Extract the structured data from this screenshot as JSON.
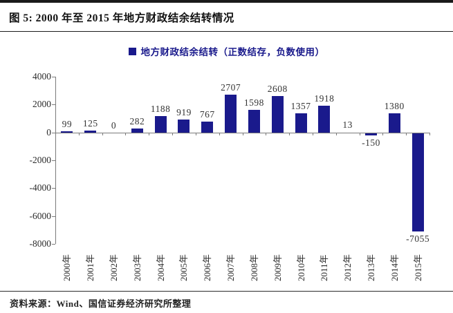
{
  "figure": {
    "title": "图 5: 2000 年至 2015 年地方财政结余结转情况",
    "source": "资料来源：Wind、国信证券经济研究所整理"
  },
  "chart_data": {
    "type": "bar",
    "title": "图 5: 2000 年至 2015 年地方财政结余结转情况",
    "legend_label": "地方财政结余结转（正数结存，负数使用）",
    "legend_position": "top",
    "categories": [
      "2000年",
      "2001年",
      "2002年",
      "2003年",
      "2004年",
      "2005年",
      "2006年",
      "2007年",
      "2008年",
      "2009年",
      "2010年",
      "2011年",
      "2012年",
      "2013年",
      "2014年",
      "2015年"
    ],
    "values": [
      99,
      125,
      0,
      282,
      1188,
      919,
      767,
      2707,
      1598,
      2608,
      1357,
      1918,
      13,
      -150,
      1380,
      -7055
    ],
    "data_labels": true,
    "xlabel": "",
    "ylabel": "",
    "ylim": [
      -8000,
      4000
    ],
    "yticks": [
      4000,
      2000,
      0,
      -2000,
      -4000,
      -6000,
      -8000
    ],
    "grid": false,
    "bar_color": "#1A1A8C",
    "axis_color": "#7A7A7A",
    "label_color": "#333333"
  }
}
